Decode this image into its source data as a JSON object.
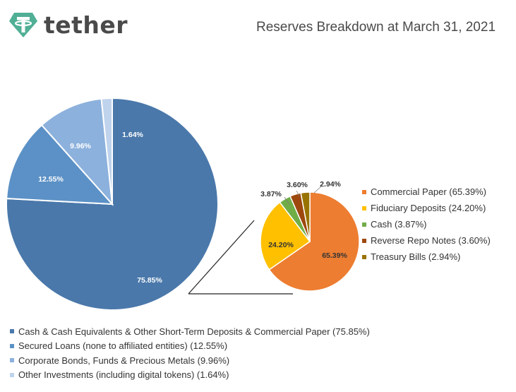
{
  "header": {
    "logo_text": "tether",
    "logo_icon": "tether-logo-icon",
    "title": "Reserves Breakdown at March 31, 2021"
  },
  "chart_data": [
    {
      "type": "pie",
      "id": "main",
      "categories": [
        "Cash & Cash Equivalents & Other Short-Term Deposits & Commercial Paper",
        "Secured Loans (none to affiliated entities)",
        "Corporate Bonds, Funds & Precious Metals",
        "Other Investments (including digital tokens)"
      ],
      "values": [
        75.85,
        12.55,
        9.96,
        1.64
      ],
      "data_labels": [
        "75.85%",
        "12.55%",
        "9.96%",
        "1.64%"
      ],
      "legend_labels": [
        "Cash & Cash Equivalents & Other Short-Term Deposits & Commercial Paper (75.85%)",
        "Secured Loans (none to affiliated entities) (12.55%)",
        "Corporate Bonds, Funds & Precious Metals (9.96%)",
        "Other Investments (including digital tokens) (1.64%)"
      ],
      "colors": [
        "#4a78aa",
        "#5b91c6",
        "#8cb1dc",
        "#bfd3ec"
      ],
      "legend_position": "bottom"
    },
    {
      "type": "pie",
      "id": "breakdown",
      "categories": [
        "Commercial Paper",
        "Fiduciary Deposits",
        "Cash",
        "Reverse Repo Notes",
        "Treasury Bills"
      ],
      "values": [
        65.39,
        24.2,
        3.87,
        3.6,
        2.94
      ],
      "data_labels": [
        "65.39%",
        "24.20%",
        "3.87%",
        "3.60%",
        "2.94%"
      ],
      "legend_labels": [
        "Commercial Paper (65.39%)",
        "Fiduciary Deposits (24.20%)",
        "Cash (3.87%)",
        "Reverse Repo Notes (3.60%)",
        "Treasury Bills (2.94%)"
      ],
      "colors": [
        "#ed7d31",
        "#ffc000",
        "#70ad47",
        "#9e480e",
        "#997300"
      ],
      "legend_position": "right"
    }
  ]
}
